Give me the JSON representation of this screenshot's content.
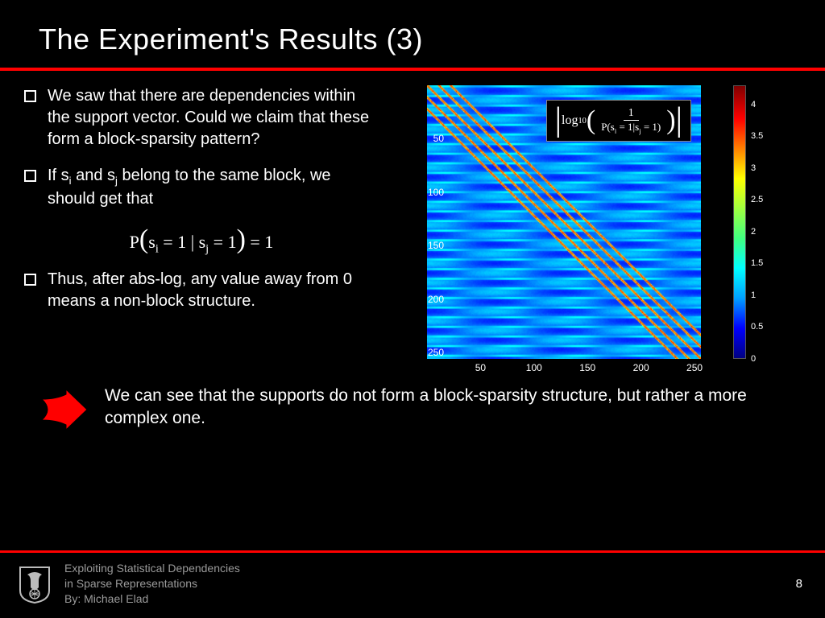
{
  "title": "The Experiment's Results (3)",
  "bullets": {
    "b1": "We saw that there are dependencies within the support vector. Could we claim that these form a block-sparsity pattern?",
    "b2_pre": "If s",
    "b2_mid": " and s",
    "b2_post": " belong to the same block, we should get that",
    "b3": "Thus, after abs-log, any value away from 0 means a non-block structure."
  },
  "formula": {
    "p_label": "P",
    "lhs_s": "s",
    "i_sub": "i",
    "j_sub": "j",
    "eq1": " = 1 | s",
    "eq2": " = 1",
    "rhs": " = 1"
  },
  "overlay": {
    "log": "log",
    "ten": "10",
    "one": "1",
    "p": "P",
    "si": "s",
    "sj": "s",
    "i": "i",
    "j": "j",
    "eq1a": " = 1",
    "bar": "|",
    "eq1b": " = 1"
  },
  "heatmap": {
    "size": 256,
    "x_ticks": [
      50,
      100,
      150,
      200,
      250
    ],
    "y_ticks": [
      50,
      100,
      150,
      200,
      250
    ],
    "cb_ticks": [
      0,
      0.5,
      1,
      1.5,
      2,
      2.5,
      3,
      3.5,
      4
    ],
    "cb_max": 4.3,
    "bg_base": 1.0,
    "diag_offsets": [
      -22,
      -11,
      0,
      11,
      22
    ],
    "diag_value": 3.8,
    "stripe_value": 1.4
  },
  "conclusion": "We can see that the supports do not form a block-sparsity structure, but rather a more complex one.",
  "footer": {
    "line1": "Exploiting Statistical Dependencies",
    "line2": "in Sparse Representations",
    "line3": "By: Michael Elad",
    "page": "8"
  },
  "colors": {
    "bg": "#000000",
    "accent": "#ff0000",
    "text": "#ffffff",
    "footer_text": "#9a9a9a"
  }
}
